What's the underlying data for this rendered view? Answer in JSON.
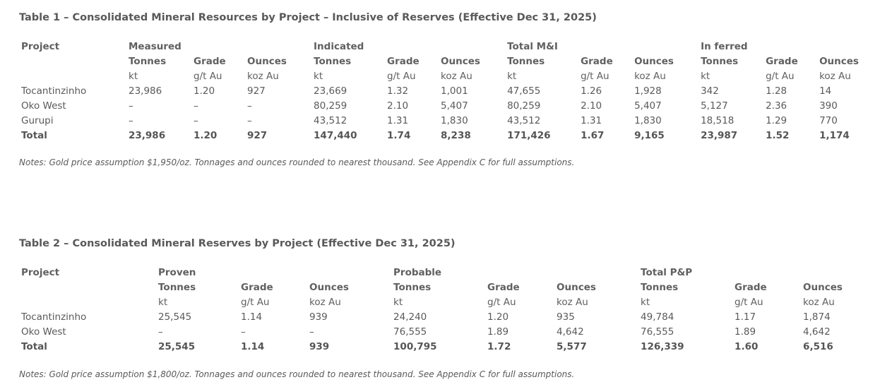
{
  "table1": {
    "title": "Table 1 – Consolidated Mineral Resources by Project – Inclusive of Reserves (Effective Dec 31, 2025)",
    "project_header": "Project",
    "groups": [
      "Measured",
      "Indicated",
      "Total M&I",
      "In ferred"
    ],
    "col_headers": [
      "Tonnes",
      "Grade",
      "Ounces"
    ],
    "units": [
      "kt",
      "g/t Au",
      "koz Au"
    ],
    "rows": [
      {
        "project": "Tocantinzinho",
        "values": [
          "23,986",
          "1.20",
          "927",
          "23,669",
          "1.32",
          "1,001",
          "47,655",
          "1.26",
          "1,928",
          "342",
          "1.28",
          "14"
        ]
      },
      {
        "project": "Oko West",
        "values": [
          "–",
          "–",
          "–",
          "80,259",
          "2.10",
          "5,407",
          "80,259",
          "2.10",
          "5,407",
          "5,127",
          "2.36",
          "390"
        ]
      },
      {
        "project": "Gurupi",
        "values": [
          "–",
          "–",
          "–",
          "43,512",
          "1.31",
          "1,830",
          "43,512",
          "1.31",
          "1,830",
          "18,518",
          "1.29",
          "770"
        ]
      }
    ],
    "total": {
      "project": "Total",
      "values": [
        "23,986",
        "1.20",
        "927",
        "147,440",
        "1.74",
        "8,238",
        "171,426",
        "1.67",
        "9,165",
        "23,987",
        "1.52",
        "1,174"
      ]
    },
    "note": "Notes: Gold price assumption $1,950/oz. Tonnages and ounces rounded to nearest thousand. See Appendix C for full assumptions."
  },
  "table2": {
    "title": "Table 2 – Consolidated Mineral Reserves by Project (Effective Dec 31, 2025)",
    "project_header": "Project",
    "groups": [
      "Proven",
      "Probable",
      "Total P&P"
    ],
    "col_headers": [
      "Tonnes",
      "Grade",
      "Ounces"
    ],
    "units": [
      "kt",
      "g/t Au",
      "koz Au"
    ],
    "rows": [
      {
        "project": "Tocantinzinho",
        "values": [
          "25,545",
          "1.14",
          "939",
          "24,240",
          "1.20",
          "935",
          "49,784",
          "1.17",
          "1,874"
        ]
      },
      {
        "project": "Oko West",
        "values": [
          "–",
          "–",
          "–",
          "76,555",
          "1.89",
          "4,642",
          "76,555",
          "1.89",
          "4,642"
        ]
      }
    ],
    "total": {
      "project": "Total",
      "values": [
        "25,545",
        "1.14",
        "939",
        "100,795",
        "1.72",
        "5,577",
        "126,339",
        "1.60",
        "6,516"
      ]
    },
    "note": "Notes: Gold price assumption $1,800/oz. Tonnages and ounces rounded to nearest thousand. See Appendix C for full assumptions."
  }
}
